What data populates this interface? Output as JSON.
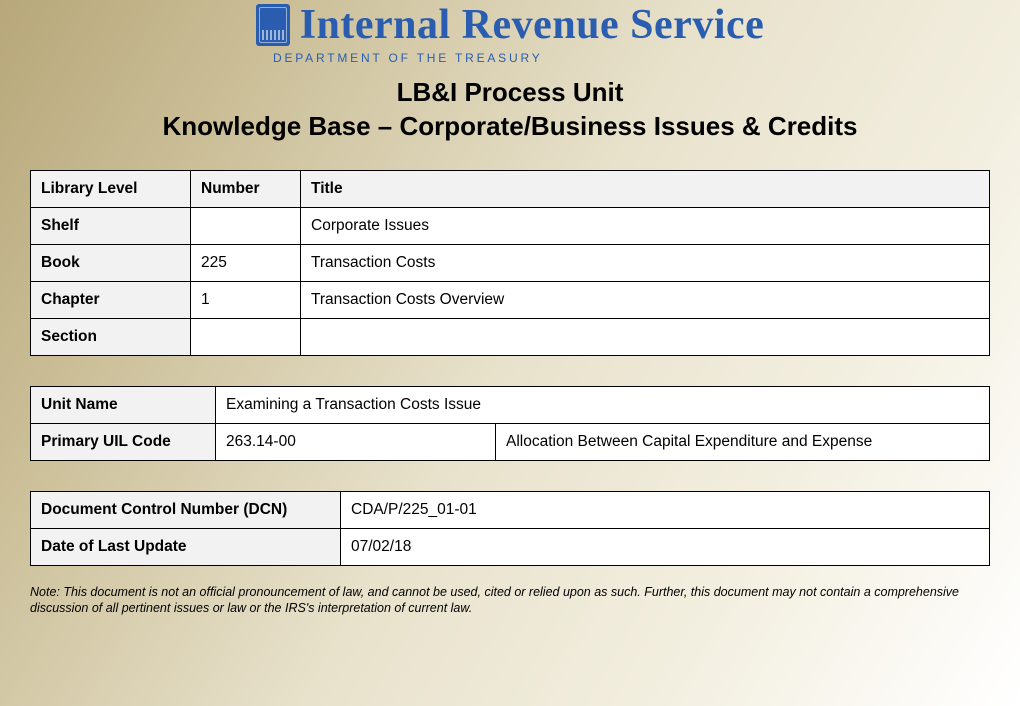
{
  "header": {
    "org_name": "Internal Revenue Service",
    "department": "DEPARTMENT OF THE TREASURY"
  },
  "titles": {
    "line1": "LB&I Process Unit",
    "line2": "Knowledge Base – Corporate/Business Issues & Credits"
  },
  "library_table": {
    "headers": {
      "c1": "Library Level",
      "c2": "Number",
      "c3": "Title"
    },
    "rows": [
      {
        "level": "Shelf",
        "number": "",
        "title": "Corporate Issues"
      },
      {
        "level": "Book",
        "number": "225",
        "title": "Transaction Costs"
      },
      {
        "level": "Chapter",
        "number": "1",
        "title": "Transaction Costs Overview"
      },
      {
        "level": "Section",
        "number": "",
        "title": ""
      }
    ]
  },
  "unit_table": {
    "rows": {
      "unit_name_label": "Unit Name",
      "unit_name_value": "Examining a Transaction Costs Issue",
      "uil_label": "Primary UIL Code",
      "uil_code": "263.14-00",
      "uil_desc": "Allocation Between Capital Expenditure and Expense"
    }
  },
  "dcn_table": {
    "dcn_label": "Document Control Number (DCN)",
    "dcn_value": "CDA/P/225_01-01",
    "date_label": "Date of Last Update",
    "date_value": "07/02/18"
  },
  "note": "Note: This document is not an official pronouncement of law, and cannot be used, cited or relied upon as such.  Further, this document may not contain a comprehensive discussion of all pertinent issues or law or the IRS's interpretation of current law.",
  "colors": {
    "brand_blue": "#2a5db0",
    "header_gray": "#f2f2f2",
    "border": "#000000",
    "bg_gradient_dark": "#b7a77a",
    "bg_gradient_light": "#ffffff"
  }
}
